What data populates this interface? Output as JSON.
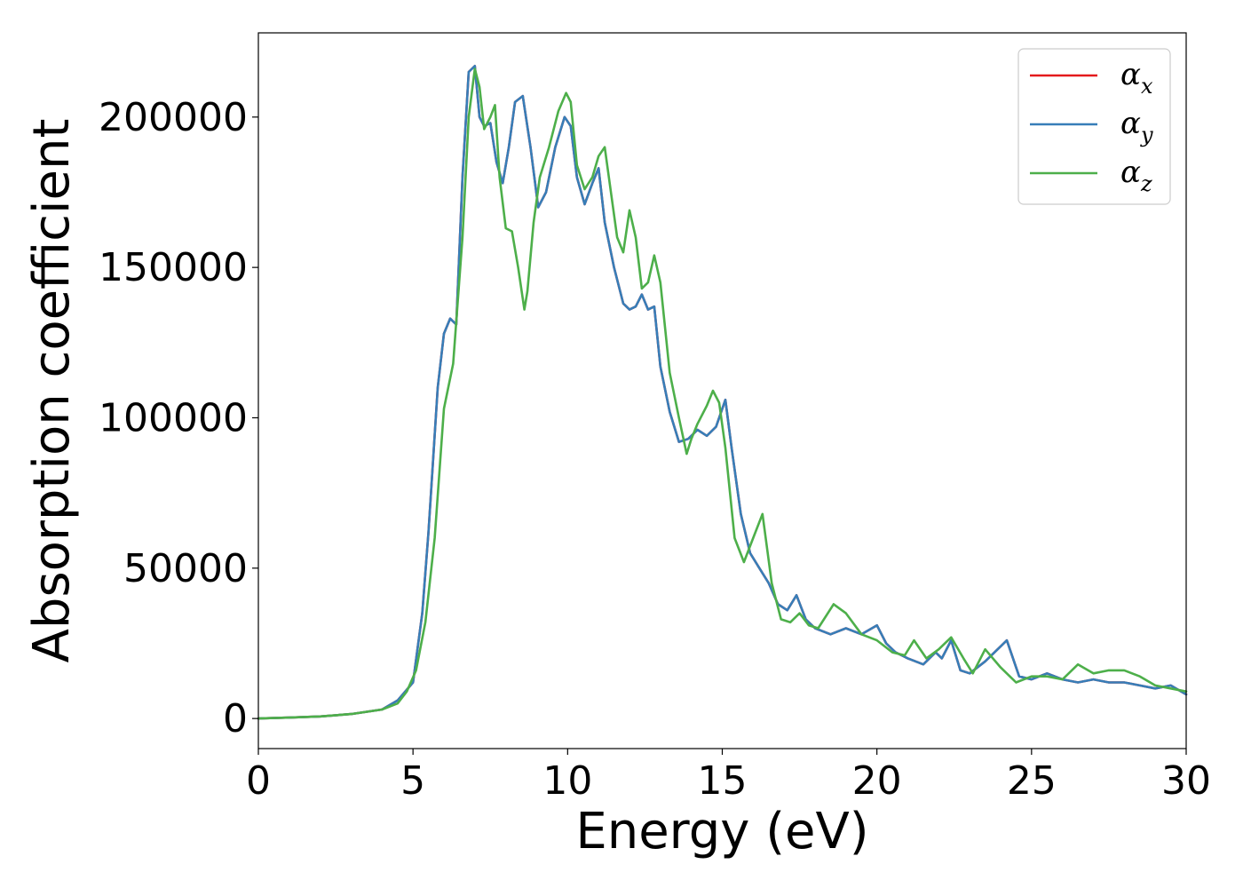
{
  "chart_data": {
    "type": "line",
    "title": "",
    "xlabel": "Energy (eV)",
    "ylabel": "Absorption coefficient",
    "xlim": [
      0,
      30
    ],
    "ylim": [
      -10000,
      228000
    ],
    "xticks": [
      0,
      5,
      10,
      15,
      20,
      25,
      30
    ],
    "yticks": [
      0,
      50000,
      100000,
      150000,
      200000
    ],
    "grid": false,
    "legend_position": "top-right",
    "series": [
      {
        "name": "α",
        "sub": "x",
        "color": "#e41a1c",
        "x": [
          0,
          1,
          2,
          3,
          4,
          4.5,
          5,
          5.3,
          5.5,
          5.8,
          6.0,
          6.2,
          6.4,
          6.6,
          6.8,
          7.0,
          7.15,
          7.3,
          7.5,
          7.7,
          7.9,
          8.1,
          8.3,
          8.55,
          8.8,
          9.05,
          9.3,
          9.6,
          9.9,
          10.1,
          10.3,
          10.55,
          10.8,
          11.0,
          11.2,
          11.5,
          11.8,
          12.0,
          12.2,
          12.4,
          12.6,
          12.8,
          13.0,
          13.3,
          13.6,
          13.9,
          14.2,
          14.5,
          14.8,
          15.1,
          15.3,
          15.6,
          15.9,
          16.2,
          16.5,
          16.8,
          17.1,
          17.4,
          17.7,
          18.0,
          18.5,
          19.0,
          19.5,
          20.0,
          20.3,
          20.6,
          21.0,
          21.5,
          21.9,
          22.1,
          22.4,
          22.7,
          23.0,
          23.5,
          24.0,
          24.2,
          24.6,
          25.0,
          25.5,
          26.0,
          26.5,
          27.0,
          27.5,
          28.0,
          28.5,
          29.0,
          29.5,
          30.0
        ],
        "y": [
          0,
          300,
          700,
          1500,
          3000,
          6000,
          12000,
          35000,
          62000,
          110000,
          128000,
          133000,
          131000,
          180000,
          215000,
          217000,
          200000,
          197000,
          198000,
          185000,
          178000,
          190000,
          205000,
          207000,
          190000,
          170000,
          175000,
          190000,
          200000,
          197000,
          180000,
          171000,
          178000,
          183000,
          165000,
          150000,
          138000,
          136000,
          137000,
          141000,
          136000,
          137000,
          117000,
          102000,
          92000,
          93000,
          96000,
          94000,
          97000,
          106000,
          90000,
          68000,
          55000,
          50000,
          45000,
          38000,
          36000,
          41000,
          33000,
          30000,
          28000,
          30000,
          28000,
          31000,
          25000,
          22000,
          20000,
          18000,
          22000,
          20000,
          26000,
          16000,
          15000,
          19000,
          24000,
          26000,
          14000,
          13000,
          15000,
          13000,
          12000,
          13000,
          12000,
          12000,
          11000,
          10000,
          11000,
          8000
        ]
      },
      {
        "name": "α",
        "sub": "y",
        "color": "#377eb8",
        "x": [
          0,
          1,
          2,
          3,
          4,
          4.5,
          5,
          5.3,
          5.5,
          5.8,
          6.0,
          6.2,
          6.4,
          6.6,
          6.8,
          7.0,
          7.15,
          7.3,
          7.5,
          7.7,
          7.9,
          8.1,
          8.3,
          8.55,
          8.8,
          9.05,
          9.3,
          9.6,
          9.9,
          10.1,
          10.3,
          10.55,
          10.8,
          11.0,
          11.2,
          11.5,
          11.8,
          12.0,
          12.2,
          12.4,
          12.6,
          12.8,
          13.0,
          13.3,
          13.6,
          13.9,
          14.2,
          14.5,
          14.8,
          15.1,
          15.3,
          15.6,
          15.9,
          16.2,
          16.5,
          16.8,
          17.1,
          17.4,
          17.7,
          18.0,
          18.5,
          19.0,
          19.5,
          20.0,
          20.3,
          20.6,
          21.0,
          21.5,
          21.9,
          22.1,
          22.4,
          22.7,
          23.0,
          23.5,
          24.0,
          24.2,
          24.6,
          25.0,
          25.5,
          26.0,
          26.5,
          27.0,
          27.5,
          28.0,
          28.5,
          29.0,
          29.5,
          30.0
        ],
        "y": [
          0,
          300,
          700,
          1500,
          3000,
          6000,
          12000,
          35000,
          62000,
          110000,
          128000,
          133000,
          131000,
          180000,
          215000,
          217000,
          200000,
          197000,
          198000,
          185000,
          178000,
          190000,
          205000,
          207000,
          190000,
          170000,
          175000,
          190000,
          200000,
          197000,
          180000,
          171000,
          178000,
          183000,
          165000,
          150000,
          138000,
          136000,
          137000,
          141000,
          136000,
          137000,
          117000,
          102000,
          92000,
          93000,
          96000,
          94000,
          97000,
          106000,
          90000,
          68000,
          55000,
          50000,
          45000,
          38000,
          36000,
          41000,
          33000,
          30000,
          28000,
          30000,
          28000,
          31000,
          25000,
          22000,
          20000,
          18000,
          22000,
          20000,
          26000,
          16000,
          15000,
          19000,
          24000,
          26000,
          14000,
          13000,
          15000,
          13000,
          12000,
          13000,
          12000,
          12000,
          11000,
          10000,
          11000,
          8000
        ]
      },
      {
        "name": "α",
        "sub": "z",
        "color": "#4daf4a",
        "x": [
          0,
          1,
          2,
          3,
          4,
          4.5,
          4.8,
          5.1,
          5.4,
          5.7,
          6.0,
          6.3,
          6.6,
          6.8,
          7.0,
          7.15,
          7.3,
          7.5,
          7.65,
          7.8,
          8.0,
          8.2,
          8.4,
          8.6,
          8.7,
          8.9,
          9.1,
          9.4,
          9.7,
          9.95,
          10.1,
          10.3,
          10.55,
          10.8,
          11.0,
          11.2,
          11.4,
          11.6,
          11.8,
          12.0,
          12.2,
          12.4,
          12.6,
          12.8,
          13.0,
          13.3,
          13.6,
          13.85,
          14.0,
          14.2,
          14.5,
          14.7,
          14.9,
          15.1,
          15.4,
          15.7,
          16.0,
          16.3,
          16.6,
          16.9,
          17.2,
          17.5,
          17.8,
          18.1,
          18.6,
          19.0,
          19.5,
          20.0,
          20.5,
          20.9,
          21.2,
          21.6,
          22.0,
          22.4,
          22.8,
          23.1,
          23.5,
          24.0,
          24.5,
          25.0,
          25.5,
          26.0,
          26.5,
          27.0,
          27.5,
          28.0,
          28.5,
          29.0,
          29.5,
          30.0
        ],
        "y": [
          0,
          300,
          700,
          1500,
          3000,
          5000,
          9000,
          16000,
          32000,
          60000,
          103000,
          118000,
          160000,
          200000,
          216000,
          210000,
          196000,
          200000,
          204000,
          180000,
          163000,
          162000,
          150000,
          136000,
          142000,
          165000,
          180000,
          190000,
          202000,
          208000,
          205000,
          184000,
          176000,
          180000,
          187000,
          190000,
          175000,
          160000,
          155000,
          169000,
          160000,
          143000,
          145000,
          154000,
          145000,
          115000,
          100000,
          88000,
          93000,
          98000,
          104000,
          109000,
          105000,
          90000,
          60000,
          52000,
          60000,
          68000,
          45000,
          33000,
          32000,
          35000,
          31000,
          30000,
          38000,
          35000,
          28000,
          26000,
          22000,
          21000,
          26000,
          20000,
          23000,
          27000,
          20000,
          15000,
          23000,
          17000,
          12000,
          14000,
          14000,
          13000,
          18000,
          15000,
          16000,
          16000,
          14000,
          11000,
          10000,
          9000
        ]
      }
    ]
  }
}
